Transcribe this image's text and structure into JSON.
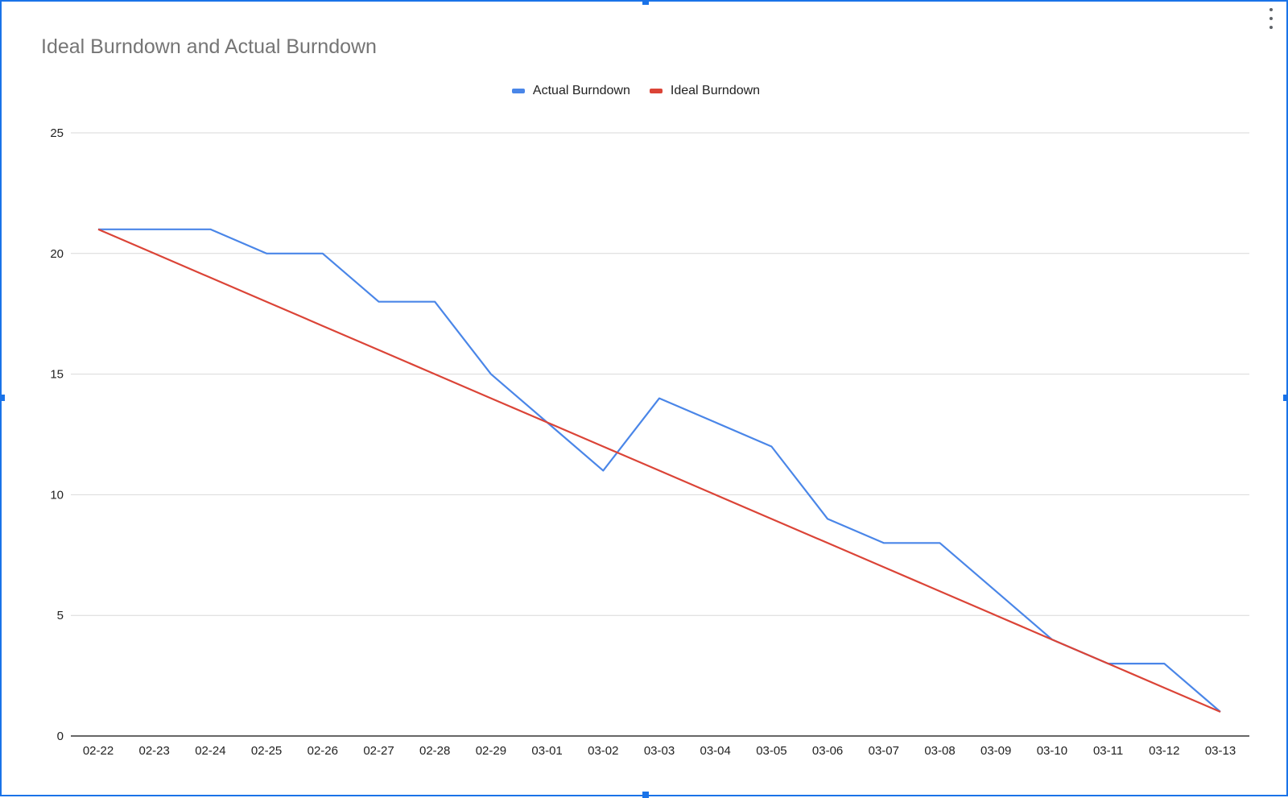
{
  "chart_data": {
    "type": "line",
    "title": "Ideal Burndown and Actual Burndown",
    "xlabel": "",
    "ylabel": "",
    "ylim": [
      0,
      25
    ],
    "yticks": [
      0,
      5,
      10,
      15,
      20,
      25
    ],
    "grid": true,
    "legend_position": "top-center",
    "categories": [
      "02-22",
      "02-23",
      "02-24",
      "02-25",
      "02-26",
      "02-27",
      "02-28",
      "02-29",
      "03-01",
      "03-02",
      "03-03",
      "03-04",
      "03-05",
      "03-06",
      "03-07",
      "03-08",
      "03-09",
      "03-10",
      "03-11",
      "03-12",
      "03-13"
    ],
    "series": [
      {
        "name": "Actual Burndown",
        "color": "#4a86e8",
        "values": [
          21,
          21,
          21,
          20,
          20,
          18,
          18,
          15,
          13,
          11,
          14,
          13,
          12,
          9,
          8,
          8,
          6,
          4,
          3,
          3,
          1
        ]
      },
      {
        "name": "Ideal Burndown",
        "color": "#db4437",
        "values": [
          21,
          20,
          19,
          18,
          17,
          16,
          15,
          14,
          13,
          12,
          11,
          10,
          9,
          8,
          7,
          6,
          5,
          4,
          3,
          2,
          1
        ]
      }
    ]
  },
  "icons": {
    "menu": "more-vert-icon"
  }
}
